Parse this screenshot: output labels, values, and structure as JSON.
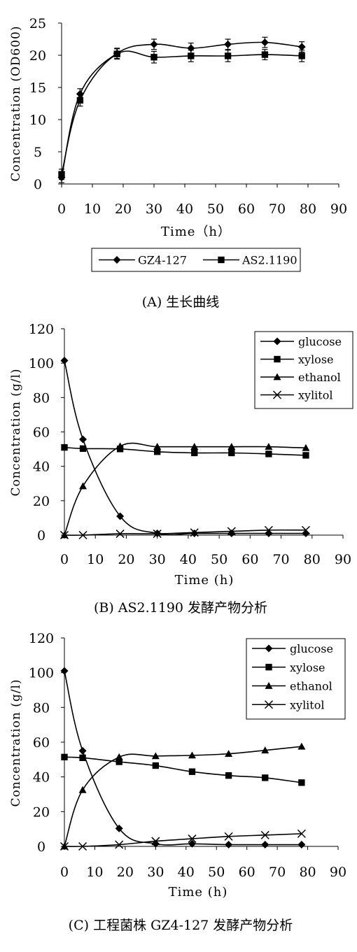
{
  "chart_data": [
    {
      "type": "line",
      "caption": "(A) 生长曲线",
      "xlabel": "Time（h）",
      "ylabel": "Concentration (OD600)",
      "xlim": [
        0,
        90
      ],
      "ylim": [
        0,
        25
      ],
      "x_ticks": [
        0,
        10,
        20,
        30,
        40,
        50,
        60,
        70,
        80,
        90
      ],
      "y_ticks": [
        0,
        5,
        10,
        15,
        20,
        25
      ],
      "legend_position": "bottom",
      "series": [
        {
          "name": "GZ4-127",
          "marker": "diamond",
          "x": [
            0,
            6,
            18,
            30,
            42,
            54,
            66,
            78
          ],
          "y": [
            1.0,
            14.0,
            20.3,
            21.7,
            21.1,
            21.7,
            22.0,
            21.3
          ],
          "err": [
            0.8,
            0.8,
            0.8,
            0.8,
            0.8,
            0.8,
            0.8,
            0.8
          ]
        },
        {
          "name": "AS2.1190",
          "marker": "square",
          "x": [
            0,
            6,
            18,
            30,
            42,
            54,
            66,
            78
          ],
          "y": [
            1.5,
            13.0,
            20.2,
            19.7,
            19.9,
            19.9,
            20.1,
            19.9
          ],
          "err": [
            0.8,
            0.9,
            0.8,
            0.9,
            0.9,
            0.9,
            0.8,
            0.9
          ]
        }
      ]
    },
    {
      "type": "line",
      "caption": "(B) AS2.1190 发酵产物分析",
      "xlabel": "Time (h)",
      "ylabel": "Concentration (g/l)",
      "xlim": [
        0,
        90
      ],
      "ylim": [
        0,
        120
      ],
      "x_ticks": [
        0,
        10,
        20,
        30,
        40,
        50,
        60,
        70,
        80,
        90
      ],
      "y_ticks": [
        0,
        20,
        40,
        60,
        80,
        100,
        120
      ],
      "legend_position": "top-right",
      "series": [
        {
          "name": "glucose",
          "marker": "diamond",
          "x": [
            0,
            6,
            18,
            30,
            42,
            54,
            66,
            78
          ],
          "y": [
            101.5,
            55.7,
            11.0,
            1.0,
            1.0,
            1.0,
            1.0,
            1.0
          ]
        },
        {
          "name": "xylose",
          "marker": "square",
          "x": [
            0,
            6,
            18,
            30,
            42,
            54,
            66,
            78
          ],
          "y": [
            51.0,
            50.3,
            50.1,
            48.5,
            47.8,
            47.8,
            47.2,
            46.4
          ]
        },
        {
          "name": "ethanol",
          "marker": "triangle",
          "x": [
            0,
            6,
            18,
            30,
            42,
            54,
            66,
            78
          ],
          "y": [
            0.0,
            28.5,
            51.7,
            51.4,
            51.4,
            51.4,
            51.4,
            50.7
          ]
        },
        {
          "name": "xylitol",
          "marker": "x",
          "x": [
            0,
            6,
            18,
            30,
            42,
            54,
            66,
            78
          ],
          "y": [
            0.0,
            0.0,
            0.8,
            0.8,
            1.5,
            2.2,
            2.9,
            2.9
          ]
        }
      ]
    },
    {
      "type": "line",
      "caption": "(C) 工程菌株 GZ4-127 发酵产物分析",
      "xlabel": "Time (h)",
      "ylabel": "Concentration (g/l)",
      "xlim": [
        0,
        90
      ],
      "ylim": [
        0,
        120
      ],
      "x_ticks": [
        0,
        10,
        20,
        30,
        40,
        50,
        60,
        70,
        80,
        90
      ],
      "y_ticks": [
        0,
        20,
        40,
        60,
        80,
        100,
        120
      ],
      "legend_position": "top-right",
      "series": [
        {
          "name": "glucose",
          "marker": "diamond",
          "x": [
            0,
            6,
            18,
            30,
            42,
            54,
            66,
            78
          ],
          "y": [
            101.0,
            55.0,
            10.3,
            1.5,
            1.5,
            1.0,
            1.0,
            1.0
          ]
        },
        {
          "name": "xylose",
          "marker": "square",
          "x": [
            0,
            6,
            18,
            30,
            42,
            54,
            66,
            78
          ],
          "y": [
            51.4,
            51.0,
            48.7,
            46.5,
            43.0,
            40.8,
            39.5,
            36.7
          ]
        },
        {
          "name": "ethanol",
          "marker": "triangle",
          "x": [
            0,
            6,
            18,
            30,
            42,
            54,
            66,
            78
          ],
          "y": [
            0.0,
            32.5,
            51.4,
            52.0,
            52.4,
            53.3,
            55.3,
            57.5
          ]
        },
        {
          "name": "xylitol",
          "marker": "x",
          "x": [
            0,
            6,
            18,
            30,
            42,
            54,
            66,
            78
          ],
          "y": [
            0.0,
            0.0,
            1.0,
            3.0,
            4.4,
            5.7,
            6.5,
            7.3
          ]
        }
      ]
    }
  ]
}
